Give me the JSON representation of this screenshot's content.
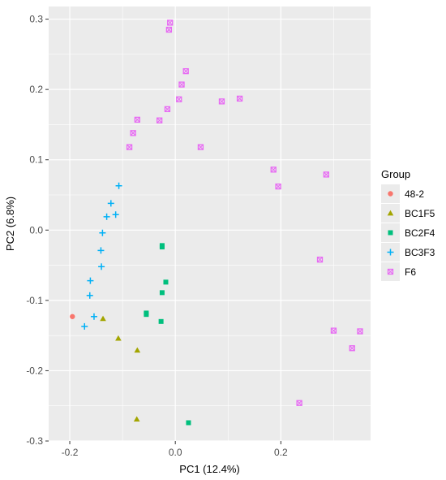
{
  "chart_data": {
    "type": "scatter",
    "xlabel": "PC1 (12.4%)",
    "ylabel": "PC2 (6.8%)",
    "xlim": [
      -0.24,
      0.37
    ],
    "ylim": [
      -0.3,
      0.318
    ],
    "x_ticks": [
      -0.2,
      0.0,
      0.2
    ],
    "x_tick_labels": [
      "-0.2",
      "0.0",
      "0.2"
    ],
    "y_ticks": [
      -0.3,
      -0.2,
      -0.1,
      0.0,
      0.1,
      0.2,
      0.3
    ],
    "y_tick_labels": [
      "-0.3",
      "-0.2",
      "-0.1",
      "0.0",
      "0.1",
      "0.2",
      "0.3"
    ],
    "grid": true,
    "legend_title": "Group",
    "legend_position": "right",
    "series": [
      {
        "name": "48-2",
        "color": "#F8766D",
        "shape": "circle",
        "points": [
          [
            -0.195,
            -0.123
          ]
        ]
      },
      {
        "name": "BC1F5",
        "color": "#A3A500",
        "shape": "triangle",
        "points": [
          [
            -0.137,
            -0.126
          ],
          [
            -0.108,
            -0.154
          ],
          [
            -0.072,
            -0.171
          ],
          [
            -0.073,
            -0.269
          ]
        ]
      },
      {
        "name": "BC2F4",
        "color": "#00BF7D",
        "shape": "square",
        "points": [
          [
            -0.025,
            -0.022
          ],
          [
            -0.025,
            -0.024
          ],
          [
            -0.018,
            -0.074
          ],
          [
            -0.025,
            -0.089
          ],
          [
            -0.055,
            -0.118
          ],
          [
            -0.055,
            -0.12
          ],
          [
            -0.027,
            -0.13
          ],
          [
            0.025,
            -0.274
          ]
        ]
      },
      {
        "name": "BC3F3",
        "color": "#00B0F6",
        "shape": "plus",
        "points": [
          [
            -0.107,
            0.063
          ],
          [
            -0.122,
            0.038
          ],
          [
            -0.113,
            0.022
          ],
          [
            -0.13,
            0.019
          ],
          [
            -0.138,
            -0.004
          ],
          [
            -0.141,
            -0.029
          ],
          [
            -0.14,
            -0.052
          ],
          [
            -0.161,
            -0.072
          ],
          [
            -0.162,
            -0.093
          ],
          [
            -0.154,
            -0.123
          ],
          [
            -0.172,
            -0.137
          ]
        ]
      },
      {
        "name": "F6",
        "color": "#E76BF3",
        "shape": "squarecross",
        "points": [
          [
            -0.01,
            0.295
          ],
          [
            -0.012,
            0.285
          ],
          [
            0.02,
            0.226
          ],
          [
            0.012,
            0.207
          ],
          [
            -0.015,
            0.172
          ],
          [
            0.007,
            0.186
          ],
          [
            -0.03,
            0.156
          ],
          [
            -0.072,
            0.157
          ],
          [
            -0.08,
            0.138
          ],
          [
            -0.087,
            0.118
          ],
          [
            0.048,
            0.118
          ],
          [
            0.088,
            0.183
          ],
          [
            0.122,
            0.187
          ],
          [
            0.186,
            0.086
          ],
          [
            0.195,
            0.062
          ],
          [
            0.286,
            0.079
          ],
          [
            0.274,
            -0.042
          ],
          [
            0.3,
            -0.143
          ],
          [
            0.35,
            -0.144
          ],
          [
            0.335,
            -0.168
          ],
          [
            0.235,
            -0.246
          ]
        ]
      }
    ]
  }
}
